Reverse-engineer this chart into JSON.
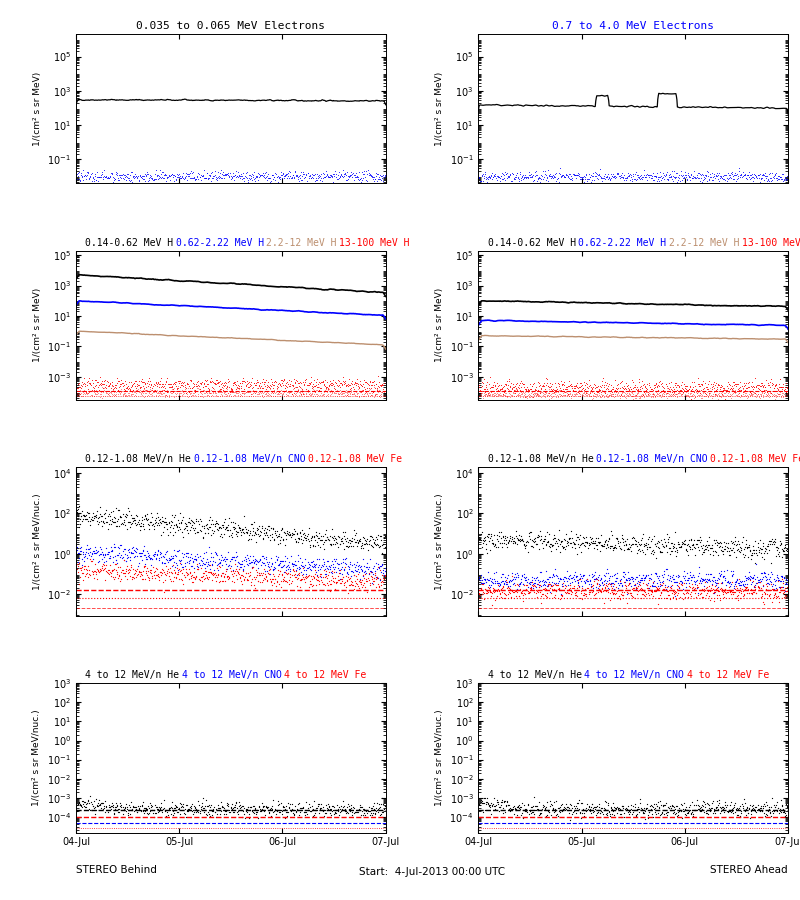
{
  "ylabel_electrons": "1/(cm² s sr MeV)",
  "ylabel_H": "1/(cm² s sr MeV)",
  "ylabel_heavy": "1/(cm² s sr MeV/nuc.)",
  "xlabel_left": "STEREO Behind",
  "xlabel_right": "STEREO Ahead",
  "xlabel_center": "Start:  4-Jul-2013 00:00 UTC",
  "xtick_labels": [
    "04-Jul",
    "05-Jul",
    "06-Jul",
    "07-Jul"
  ],
  "row0_title_left": "0.035 to 0.065 MeV Electrons",
  "row0_title_right": "0.7 to 4.0 MeV Electrons",
  "row1_parts": [
    {
      "text": "0.14-0.62 MeV H",
      "color": "black"
    },
    {
      "text": "0.62-2.22 MeV H",
      "color": "blue"
    },
    {
      "text": "2.2-12 MeV H",
      "color": "#bc8f6f"
    },
    {
      "text": "13-100 MeV H",
      "color": "red"
    }
  ],
  "row2_parts": [
    {
      "text": "0.12-1.08 MeV/n He",
      "color": "black"
    },
    {
      "text": "0.12-1.08 MeV/n CNO",
      "color": "blue"
    },
    {
      "text": "0.12-1.08 MeV Fe",
      "color": "red"
    }
  ],
  "row3_parts": [
    {
      "text": "4 to 12 MeV/n He",
      "color": "black"
    },
    {
      "text": "4 to 12 MeV/n CNO",
      "color": "blue"
    },
    {
      "text": "4 to 12 MeV Fe",
      "color": "red"
    }
  ],
  "n_points": 600
}
